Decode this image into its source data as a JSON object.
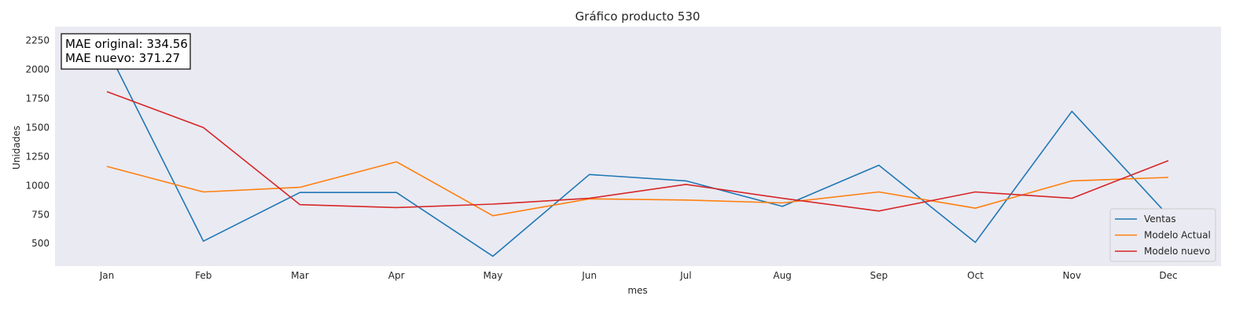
{
  "chart_data": {
    "type": "line",
    "title": "Gráfico producto 530",
    "xlabel": "mes",
    "ylabel": "Unidades",
    "categories": [
      "Jan",
      "Feb",
      "Mar",
      "Apr",
      "May",
      "Jun",
      "Jul",
      "Aug",
      "Sep",
      "Oct",
      "Nov",
      "Dec"
    ],
    "yticks": [
      500,
      750,
      1000,
      1250,
      1500,
      1750,
      2000,
      2250
    ],
    "ylim": [
      305,
      2370
    ],
    "grid": false,
    "legend_position": "bottom-right",
    "background_color": "#eaeaf2",
    "annotation": [
      "MAE original: 334.56",
      "MAE nuevo: 371.27"
    ],
    "series": [
      {
        "name": "Ventas",
        "color": "#1f77b4",
        "values": [
          2180,
          520,
          940,
          940,
          390,
          1095,
          1040,
          820,
          1175,
          510,
          1640,
          740
        ]
      },
      {
        "name": "Modelo Actual",
        "color": "#ff7f0e",
        "values": [
          1165,
          945,
          985,
          1205,
          740,
          885,
          875,
          850,
          945,
          805,
          1040,
          1070
        ]
      },
      {
        "name": "Modelo nuevo",
        "color": "#d62728",
        "values": [
          1810,
          1500,
          835,
          810,
          840,
          890,
          1010,
          890,
          780,
          945,
          890,
          1215
        ]
      }
    ]
  }
}
